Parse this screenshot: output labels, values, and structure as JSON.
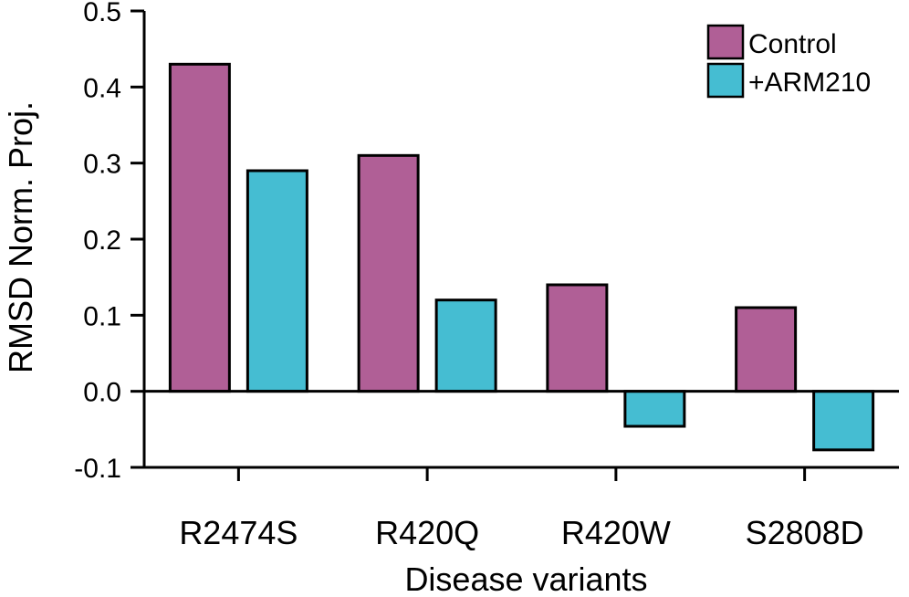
{
  "chart_data": {
    "type": "bar",
    "xlabel": "Disease variants",
    "ylabel": "RMSD Norm. Proj.",
    "categories": [
      "R2474S",
      "R420Q",
      "R420W",
      "S2808D"
    ],
    "series": [
      {
        "name": "Control",
        "color": "#B05F96",
        "values": [
          0.43,
          0.31,
          0.14,
          0.11
        ]
      },
      {
        "name": "+ARM210",
        "color": "#45BDD2",
        "values": [
          0.29,
          0.12,
          -0.046,
          -0.077
        ]
      }
    ],
    "ylim": [
      -0.1,
      0.5
    ],
    "yticks": [
      "-0.1",
      "0.0",
      "0.1",
      "0.2",
      "0.3",
      "0.4",
      "0.5"
    ],
    "grid": false,
    "legend_position": "top-right",
    "zero_line": true
  }
}
